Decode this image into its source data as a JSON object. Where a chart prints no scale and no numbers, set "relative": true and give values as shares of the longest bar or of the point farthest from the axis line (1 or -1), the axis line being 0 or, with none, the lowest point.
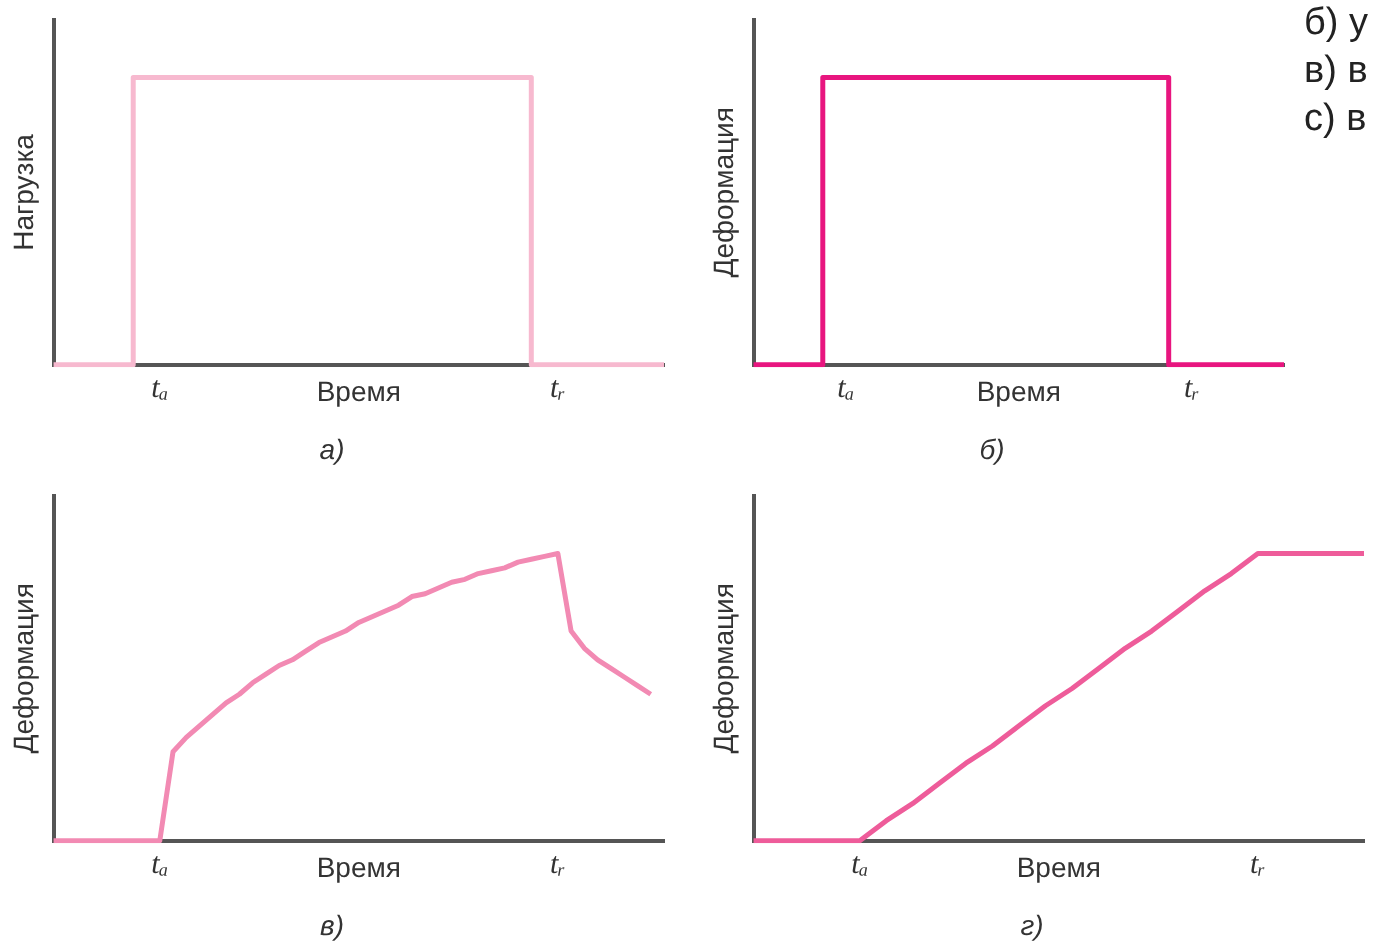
{
  "chart_data": [
    {
      "type": "step",
      "title": "а)",
      "xlabel": "Время",
      "ylabel": "Нагрузка",
      "relative": true,
      "marker": "none",
      "legend": false,
      "categories": [
        null,
        null,
        null,
        null,
        "tₐ",
        null,
        null,
        null,
        null,
        null,
        null,
        null,
        null,
        null,
        null,
        null,
        null,
        null,
        null,
        "tᵣ",
        null,
        null,
        null,
        null
      ],
      "series": [
        {
          "color": "#f7b9cf",
          "values": [
            0,
            0,
            0,
            0,
            1,
            1,
            1,
            1,
            1,
            1,
            1,
            1,
            1,
            1,
            1,
            1,
            1,
            1,
            1,
            0,
            0,
            0,
            0,
            0
          ]
        }
      ]
    },
    {
      "type": "step",
      "title": "б)",
      "xlabel": "Время",
      "ylabel": "Деформация",
      "relative": true,
      "marker": "none",
      "legend": false,
      "annotations": [
        "б) у",
        "в) в",
        "с) в"
      ],
      "categories": [
        null,
        null,
        null,
        null,
        "tₐ",
        null,
        null,
        null,
        null,
        null,
        null,
        null,
        null,
        null,
        null,
        null,
        null,
        null,
        null,
        "tᵣ",
        null,
        null,
        null,
        null
      ],
      "series": [
        {
          "color": "#e8157f",
          "values": [
            0,
            0,
            0,
            0,
            1,
            1,
            1,
            1,
            1,
            1,
            1,
            1,
            1,
            1,
            1,
            1,
            1,
            1,
            1,
            0,
            0,
            0,
            0,
            0
          ]
        }
      ]
    },
    {
      "type": "line",
      "title": "в)",
      "xlabel": "Время",
      "ylabel": "Деформация",
      "relative": true,
      "marker": "none",
      "legend": false,
      "categories": [
        null,
        null,
        null,
        null,
        null,
        null,
        null,
        null,
        "tₐ",
        null,
        null,
        null,
        null,
        null,
        null,
        null,
        null,
        null,
        null,
        null,
        null,
        null,
        null,
        null,
        null,
        null,
        null,
        null,
        null,
        null,
        null,
        null,
        null,
        null,
        null,
        null,
        null,
        null,
        "tᵣ",
        null,
        null,
        null,
        null,
        null,
        null,
        null,
        null
      ],
      "series": [
        {
          "color": "#f28ab3",
          "values": [
            0,
            0,
            0,
            0,
            0,
            0,
            0,
            0,
            0,
            0.31,
            0.36,
            0.4,
            0.44,
            0.48,
            0.51,
            0.55,
            0.58,
            0.61,
            0.63,
            0.66,
            0.69,
            0.71,
            0.73,
            0.76,
            0.78,
            0.8,
            0.82,
            0.85,
            0.86,
            0.88,
            0.9,
            0.91,
            0.93,
            0.94,
            0.95,
            0.97,
            0.98,
            0.99,
            1,
            0.73,
            0.67,
            0.63,
            0.6,
            0.57,
            0.54,
            0.51,
            null
          ]
        }
      ]
    },
    {
      "type": "line",
      "title": "г)",
      "xlabel": "Время",
      "ylabel": "Деформация",
      "relative": true,
      "marker": "none",
      "legend": false,
      "categories": [
        null,
        null,
        null,
        null,
        "tₐ",
        null,
        null,
        null,
        null,
        null,
        null,
        null,
        null,
        null,
        null,
        null,
        null,
        null,
        null,
        "tᵣ",
        null,
        null,
        null,
        null
      ],
      "series": [
        {
          "color": "#ee5c9a",
          "values": [
            0,
            0,
            0,
            0,
            0,
            0.07,
            0.13,
            0.2,
            0.27,
            0.33,
            0.4,
            0.47,
            0.53,
            0.6,
            0.67,
            0.73,
            0.8,
            0.87,
            0.93,
            1,
            1,
            1,
            1,
            1
          ]
        }
      ]
    }
  ]
}
